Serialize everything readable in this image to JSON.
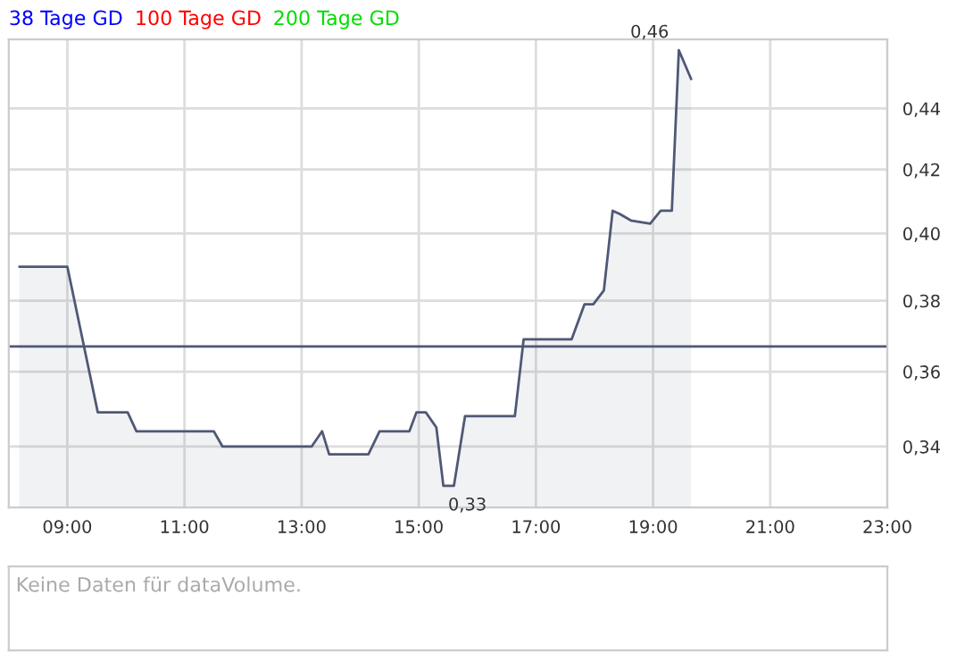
{
  "chart_data": {
    "type": "area",
    "x": [
      8.18,
      9.0,
      9.52,
      10.03,
      10.18,
      11.5,
      11.65,
      13.17,
      13.35,
      13.47,
      14.14,
      14.33,
      14.84,
      14.96,
      15.12,
      15.3,
      15.42,
      15.6,
      15.79,
      16.64,
      16.79,
      17.61,
      17.83,
      17.98,
      18.16,
      18.31,
      18.43,
      18.62,
      18.95,
      19.13,
      19.32,
      19.44,
      19.65
    ],
    "series": [
      {
        "color": "#4f5875",
        "values": [
          0.39,
          0.39,
          0.349,
          0.349,
          0.344,
          0.344,
          0.34,
          0.34,
          0.344,
          0.338,
          0.338,
          0.344,
          0.344,
          0.349,
          0.349,
          0.345,
          0.33,
          0.33,
          0.348,
          0.348,
          0.369,
          0.369,
          0.379,
          0.379,
          0.383,
          0.407,
          0.406,
          0.404,
          0.403,
          0.407,
          0.407,
          0.46,
          0.45
        ]
      },
      {
        "name": "38 Tage GD",
        "color": "#0000ff",
        "values": [
          null,
          null,
          null,
          null,
          null,
          null,
          null,
          null,
          null,
          null,
          null,
          null,
          null,
          null,
          null,
          null,
          null,
          null,
          null,
          null,
          null,
          null,
          null,
          null,
          null,
          null,
          null,
          null,
          null,
          null,
          null,
          null,
          null
        ]
      },
      {
        "name": "100 Tage GD",
        "color": "#ff0000",
        "values": [
          null,
          null,
          null,
          null,
          null,
          null,
          null,
          null,
          null,
          null,
          null,
          null,
          null,
          null,
          null,
          null,
          null,
          null,
          null,
          null,
          null,
          null,
          null,
          null,
          null,
          null,
          null,
          null,
          null,
          null,
          null,
          null,
          null
        ]
      },
      {
        "name": "200 Tage GD",
        "color": "#00dd00",
        "values": [
          null,
          null,
          null,
          null,
          null,
          null,
          null,
          null,
          null,
          null,
          null,
          null,
          null,
          null,
          null,
          null,
          null,
          null,
          null,
          null,
          null,
          null,
          null,
          null,
          null,
          null,
          null,
          null,
          null,
          null,
          null,
          null,
          null
        ]
      }
    ],
    "log": true,
    "xlim": [
      8.0,
      23.0
    ],
    "xticks": [
      {
        "value": 9,
        "label": "09:00"
      },
      {
        "value": 11,
        "label": "11:00"
      },
      {
        "value": 13,
        "label": "13:00"
      },
      {
        "value": 15,
        "label": "15:00"
      },
      {
        "value": 17,
        "label": "17:00"
      },
      {
        "value": 19,
        "label": "19:00"
      },
      {
        "value": 21,
        "label": "21:00"
      },
      {
        "value": 23,
        "label": "23:00"
      }
    ],
    "ylim": [
      0.3246,
      0.4638
    ],
    "yticks": [
      {
        "value": 0.34,
        "label": "0,34"
      },
      {
        "value": 0.36,
        "label": "0,36"
      },
      {
        "value": 0.38,
        "label": "0,38"
      },
      {
        "value": 0.4,
        "label": "0,40"
      },
      {
        "value": 0.42,
        "label": "0,42"
      },
      {
        "value": 0.44,
        "label": "0,44"
      }
    ],
    "ref_lines": [
      {
        "axis": "y",
        "value": 0.367,
        "color": "#4f5875"
      }
    ],
    "annotations": [
      {
        "text": "0,33",
        "x": 15.5,
        "y": 0.33
      },
      {
        "text": "0,46",
        "x": 19.44,
        "y": 0.46
      },
      "Keine Daten für dataVolume."
    ],
    "grid": true
  }
}
